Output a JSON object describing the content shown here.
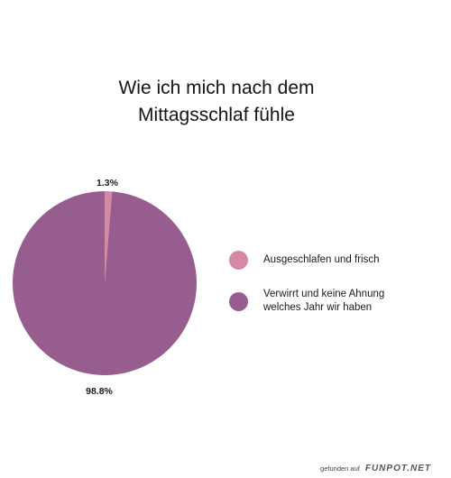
{
  "chart_data": {
    "type": "pie",
    "title": [
      "Wie ich mich nach dem",
      "Mittagsschlaf fühle"
    ],
    "slices": [
      {
        "label": "Ausgeschlafen und frisch",
        "value": 1.3,
        "display": "1.3%",
        "color": "#d48aa6"
      },
      {
        "label": "Verwirrt und keine Ahnung\nwelches Jahr wir haben",
        "value": 98.8,
        "display": "98.8%",
        "color": "#985d8f"
      }
    ],
    "legend_position": "right",
    "start_angle_deg": 0,
    "direction": "clockwise"
  },
  "footer": {
    "prefix": "gefunden auf",
    "brand": "FUNPOT.NET"
  }
}
